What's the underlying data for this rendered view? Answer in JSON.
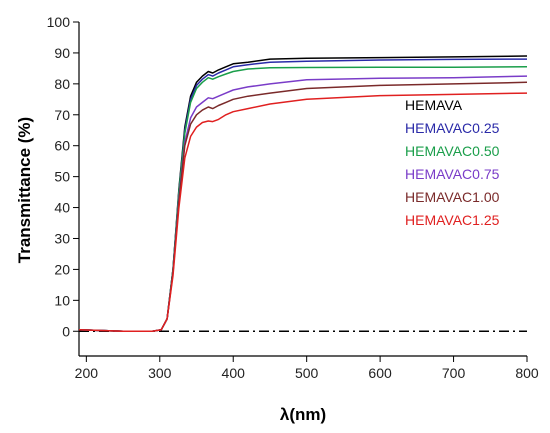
{
  "chart_data": {
    "type": "line",
    "title": "",
    "xlabel": "λ(nm)",
    "ylabel": "Transmittance (%)",
    "xlim": [
      190,
      800
    ],
    "ylim": [
      -8,
      100
    ],
    "xticks": [
      200,
      300,
      400,
      500,
      600,
      700,
      800
    ],
    "yticks": [
      0,
      10,
      20,
      30,
      40,
      50,
      60,
      70,
      80,
      90,
      100
    ],
    "grid": false,
    "legend_position": "right-middle",
    "reference_line": {
      "y": 0,
      "style": "dash-dot",
      "color": "#000000"
    },
    "series": [
      {
        "name": "HEMAVA",
        "color": "#000000",
        "x": [
          190,
          250,
          290,
          302,
          310,
          318,
          326,
          334,
          342,
          350,
          358,
          366,
          372,
          380,
          390,
          400,
          420,
          450,
          500,
          600,
          700,
          800
        ],
        "y": [
          0.5,
          0.0,
          0.0,
          0.5,
          4,
          20,
          46,
          66,
          76,
          80.5,
          82.5,
          84,
          83.5,
          84.5,
          85.5,
          86.5,
          87,
          88,
          88.3,
          88.5,
          88.7,
          89
        ]
      },
      {
        "name": "HEMAVAC0.25",
        "color": "#2a2aa8",
        "x": [
          190,
          250,
          290,
          302,
          310,
          318,
          326,
          334,
          342,
          350,
          358,
          366,
          372,
          380,
          390,
          400,
          420,
          450,
          500,
          600,
          700,
          800
        ],
        "y": [
          0.5,
          0.0,
          0.0,
          0.5,
          4,
          20,
          45,
          65,
          75,
          79.5,
          81.5,
          83,
          82.5,
          83.5,
          84.5,
          85.5,
          86.2,
          87,
          87.3,
          87.7,
          87.9,
          88
        ]
      },
      {
        "name": "HEMAVAC0.50",
        "color": "#1a9e4a",
        "x": [
          190,
          250,
          290,
          302,
          310,
          318,
          326,
          334,
          342,
          350,
          358,
          366,
          372,
          380,
          390,
          400,
          420,
          450,
          500,
          600,
          700,
          800
        ],
        "y": [
          0.5,
          0.0,
          0.0,
          0.5,
          4,
          20,
          45,
          64,
          74,
          78.5,
          80.5,
          82,
          81.5,
          82.3,
          83.2,
          84,
          84.8,
          85.2,
          85.3,
          85.4,
          85.4,
          85.5
        ]
      },
      {
        "name": "HEMAVAC0.75",
        "color": "#7a3cc8",
        "x": [
          190,
          250,
          290,
          302,
          310,
          318,
          326,
          334,
          342,
          350,
          358,
          366,
          372,
          380,
          390,
          400,
          420,
          450,
          500,
          600,
          700,
          800
        ],
        "y": [
          0.5,
          0.0,
          0.0,
          0.5,
          4,
          19,
          43,
          61,
          69,
          72.5,
          74,
          75.5,
          75.2,
          76,
          77,
          78,
          79,
          80,
          81.3,
          81.8,
          82,
          82.5
        ]
      },
      {
        "name": "HEMAVAC1.00",
        "color": "#7a2a2a",
        "x": [
          190,
          250,
          290,
          302,
          310,
          318,
          326,
          334,
          342,
          350,
          358,
          366,
          372,
          380,
          390,
          400,
          420,
          450,
          500,
          600,
          700,
          800
        ],
        "y": [
          0.5,
          0.0,
          0.0,
          0.5,
          4,
          19,
          42,
          60,
          67,
          70,
          71.5,
          72.5,
          72,
          73,
          74,
          75,
          76,
          77,
          78.5,
          79.5,
          80,
          80.5
        ]
      },
      {
        "name": "HEMAVAC1.25",
        "color": "#e02020",
        "x": [
          190,
          250,
          290,
          302,
          310,
          318,
          326,
          334,
          342,
          350,
          358,
          366,
          372,
          380,
          390,
          400,
          420,
          450,
          500,
          600,
          700,
          800
        ],
        "y": [
          0.5,
          0.0,
          0.0,
          0.5,
          4,
          18,
          40,
          56,
          63,
          66,
          67.5,
          68,
          67.8,
          68.5,
          70,
          71,
          72,
          73.5,
          75,
          76.2,
          76.6,
          77
        ]
      }
    ]
  }
}
